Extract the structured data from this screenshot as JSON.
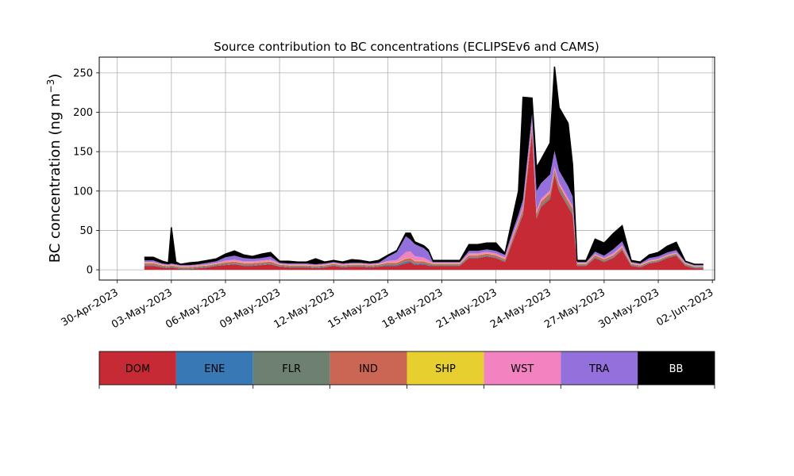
{
  "chart_data": {
    "type": "area",
    "stacked": true,
    "title": "Source contribution to BC concentrations (ECLIPSEv6 and CAMS)",
    "xlabel": "",
    "ylabel": "BC concentration (ng m",
    "ylabel_unit_exponent": "−3",
    "ylabel_suffix": ")",
    "ylim": [
      -13,
      270
    ],
    "yticks": [
      0,
      50,
      100,
      150,
      200,
      250
    ],
    "xlim": [
      "2023-04-29T00:00",
      "2023-06-02T03:00"
    ],
    "xticks": [
      "2023-04-30",
      "2023-05-03",
      "2023-05-06",
      "2023-05-09",
      "2023-05-12",
      "2023-05-15",
      "2023-05-18",
      "2023-05-21",
      "2023-05-24",
      "2023-05-27",
      "2023-05-30",
      "2023-06-02"
    ],
    "xtick_labels": [
      "30-Apr-2023",
      "03-May-2023",
      "06-May-2023",
      "09-May-2023",
      "12-May-2023",
      "15-May-2023",
      "18-May-2023",
      "21-May-2023",
      "24-May-2023",
      "27-May-2023",
      "30-May-2023",
      "02-Jun-2023"
    ],
    "grid": true,
    "legend_placement": "below",
    "x": [
      "2023-05-01T12:00",
      "2023-05-02T00:00",
      "2023-05-02T12:00",
      "2023-05-02T20:00",
      "2023-05-03T00:00",
      "2023-05-03T06:00",
      "2023-05-03T12:00",
      "2023-05-04T00:00",
      "2023-05-04T12:00",
      "2023-05-05T00:00",
      "2023-05-05T12:00",
      "2023-05-06T00:00",
      "2023-05-06T12:00",
      "2023-05-07T00:00",
      "2023-05-07T12:00",
      "2023-05-08T00:00",
      "2023-05-08T12:00",
      "2023-05-09T00:00",
      "2023-05-09T12:00",
      "2023-05-10T00:00",
      "2023-05-10T12:00",
      "2023-05-11T00:00",
      "2023-05-11T12:00",
      "2023-05-12T00:00",
      "2023-05-12T12:00",
      "2023-05-13T00:00",
      "2023-05-13T12:00",
      "2023-05-14T00:00",
      "2023-05-14T12:00",
      "2023-05-15T00:00",
      "2023-05-15T12:00",
      "2023-05-16T00:00",
      "2023-05-16T06:00",
      "2023-05-16T12:00",
      "2023-05-17T00:00",
      "2023-05-17T06:00",
      "2023-05-17T12:00",
      "2023-05-18T00:00",
      "2023-05-18T12:00",
      "2023-05-19T00:00",
      "2023-05-19T12:00",
      "2023-05-20T00:00",
      "2023-05-20T12:00",
      "2023-05-21T00:00",
      "2023-05-21T12:00",
      "2023-05-22T00:00",
      "2023-05-22T06:00",
      "2023-05-22T12:00",
      "2023-05-23T00:00",
      "2023-05-23T06:00",
      "2023-05-23T12:00",
      "2023-05-24T00:00",
      "2023-05-24T06:00",
      "2023-05-24T12:00",
      "2023-05-25T00:00",
      "2023-05-25T06:00",
      "2023-05-25T12:00",
      "2023-05-26T00:00",
      "2023-05-26T12:00",
      "2023-05-27T00:00",
      "2023-05-27T12:00",
      "2023-05-28T00:00",
      "2023-05-28T12:00",
      "2023-05-29T00:00",
      "2023-05-29T12:00",
      "2023-05-30T00:00",
      "2023-05-30T12:00",
      "2023-05-31T00:00",
      "2023-05-31T12:00",
      "2023-06-01T00:00",
      "2023-06-01T12:00"
    ],
    "series": [
      {
        "name": "DOM",
        "color": "#c52a35",
        "values": [
          5,
          5,
          3,
          2,
          3,
          2,
          1,
          1,
          2,
          3,
          5,
          6,
          7,
          5,
          5,
          6,
          7,
          4,
          3,
          3,
          3,
          2,
          3,
          5,
          3,
          4,
          4,
          3,
          4,
          5,
          5,
          8,
          10,
          6,
          7,
          5,
          5,
          5,
          5,
          5,
          15,
          15,
          17,
          15,
          10,
          40,
          55,
          70,
          175,
          65,
          80,
          90,
          120,
          100,
          80,
          70,
          5,
          5,
          15,
          10,
          15,
          25,
          5,
          3,
          8,
          10,
          15,
          18,
          5,
          2,
          2
        ]
      },
      {
        "name": "ENE",
        "color": "#3778b5",
        "values": [
          0.5,
          0.5,
          0.5,
          0.5,
          0.5,
          0.5,
          0.5,
          0.5,
          0.5,
          0.5,
          0.5,
          0.5,
          0.5,
          0.5,
          0.5,
          0.5,
          0.5,
          0.5,
          0.5,
          0.5,
          0.5,
          0.5,
          0.5,
          0.5,
          0.5,
          0.5,
          0.5,
          0.5,
          0.5,
          1,
          1,
          2,
          1,
          1,
          1,
          1,
          0.5,
          0.5,
          0.5,
          0.5,
          0.5,
          0.5,
          0.5,
          0.5,
          0.5,
          0.5,
          0.5,
          0.5,
          0.5,
          0.5,
          0.5,
          0.5,
          0.5,
          0.5,
          0.5,
          0.5,
          0.5,
          0.5,
          0.5,
          0.5,
          0.5,
          0.5,
          0.5,
          0.5,
          0.5,
          0.5,
          0.5,
          0.5,
          0.5,
          0.5,
          0.5
        ]
      },
      {
        "name": "FLR",
        "color": "#6e8170",
        "values": [
          1,
          1,
          1,
          1,
          1,
          1,
          1,
          1,
          1,
          1,
          1,
          1,
          1,
          1,
          1,
          1,
          1,
          1,
          1,
          1,
          1,
          1,
          1,
          1,
          1,
          1,
          1,
          1,
          1,
          1,
          1,
          1,
          1,
          1,
          1,
          1,
          1,
          1,
          1,
          1,
          1,
          1,
          1,
          1,
          1,
          2,
          2,
          3,
          3,
          2,
          2,
          3,
          3,
          3,
          3,
          3,
          1,
          1,
          1,
          1,
          1,
          1,
          1,
          1,
          1,
          1,
          1,
          1,
          1,
          1,
          1
        ]
      },
      {
        "name": "IND",
        "color": "#cb6554",
        "values": [
          2,
          2,
          1,
          1,
          1,
          1,
          1,
          1,
          1,
          1,
          1,
          2,
          2,
          2,
          2,
          2,
          2,
          1,
          1,
          1,
          1,
          1,
          1,
          1,
          1,
          1,
          1,
          1,
          1,
          2,
          2,
          3,
          3,
          3,
          2,
          2,
          1,
          1,
          1,
          1,
          2,
          2,
          2,
          2,
          2,
          3,
          3,
          4,
          5,
          4,
          4,
          4,
          4,
          4,
          4,
          4,
          1,
          1,
          2,
          2,
          2,
          2,
          1,
          1,
          1,
          1,
          1,
          1,
          1,
          0.5,
          0.5
        ]
      },
      {
        "name": "SHP",
        "color": "#e6cf2f",
        "values": [
          0.5,
          0.5,
          0.5,
          0.5,
          0.5,
          0.5,
          0.5,
          0.5,
          0.5,
          0.5,
          0.5,
          0.5,
          0.5,
          0.5,
          0.5,
          0.5,
          0.5,
          0.5,
          0.5,
          0.5,
          0.5,
          0.5,
          0.5,
          0.5,
          0.5,
          0.5,
          0.5,
          0.5,
          0.5,
          0.5,
          0.5,
          0.5,
          0.5,
          0.5,
          0.5,
          0.5,
          0.5,
          0.5,
          0.5,
          0.5,
          0.5,
          0.5,
          0.5,
          0.5,
          0.5,
          0.5,
          0.5,
          0.5,
          0.5,
          0.5,
          0.5,
          0.5,
          0.5,
          0.5,
          0.5,
          0.5,
          0.5,
          0.5,
          0.5,
          0.5,
          0.5,
          0.5,
          0.5,
          0.5,
          0.5,
          0.5,
          0.5,
          0.5,
          0.5,
          0.5,
          0.5
        ]
      },
      {
        "name": "WST",
        "color": "#f382c0",
        "values": [
          1,
          1,
          1,
          1,
          1,
          1,
          1,
          1,
          1,
          1,
          1,
          2,
          2,
          2,
          2,
          2,
          2,
          1,
          1,
          1,
          1,
          1,
          1,
          1,
          1,
          1,
          1,
          1,
          1,
          2,
          3,
          8,
          8,
          6,
          4,
          3,
          1,
          1,
          1,
          1,
          2,
          2,
          2,
          2,
          2,
          3,
          3,
          3,
          4,
          3,
          3,
          3,
          3,
          3,
          3,
          3,
          1,
          1,
          1,
          1,
          2,
          2,
          1,
          1,
          1,
          1,
          1,
          1,
          1,
          0.5,
          0.5
        ]
      },
      {
        "name": "TRA",
        "color": "#9370db",
        "values": [
          2,
          2,
          1,
          1,
          1,
          1,
          1,
          1,
          1,
          2,
          2,
          4,
          5,
          4,
          3,
          3,
          4,
          1,
          1,
          1,
          1,
          1,
          1,
          1,
          1,
          1,
          1,
          1,
          1,
          5,
          10,
          20,
          15,
          15,
          12,
          10,
          1,
          1,
          1,
          1,
          3,
          3,
          3,
          3,
          3,
          5,
          6,
          8,
          10,
          25,
          20,
          20,
          20,
          15,
          15,
          12,
          1,
          1,
          3,
          3,
          5,
          5,
          1,
          1,
          3,
          3,
          3,
          3,
          1,
          1,
          1
        ]
      },
      {
        "name": "BB",
        "color": "#000000",
        "values": [
          4,
          4,
          3,
          2,
          46,
          3,
          1,
          3,
          3,
          3,
          3,
          4,
          6,
          4,
          3,
          5,
          5,
          2,
          3,
          2,
          2,
          7,
          2,
          2,
          2,
          4,
          3,
          2,
          3,
          2,
          2,
          4,
          8,
          3,
          3,
          3,
          2,
          2,
          2,
          2,
          8,
          8,
          8,
          10,
          2,
          20,
          30,
          130,
          20,
          30,
          30,
          40,
          107,
          80,
          80,
          40,
          2,
          2,
          16,
          16,
          20,
          20,
          2,
          2,
          4,
          5,
          8,
          10,
          1,
          1,
          1
        ]
      }
    ]
  }
}
